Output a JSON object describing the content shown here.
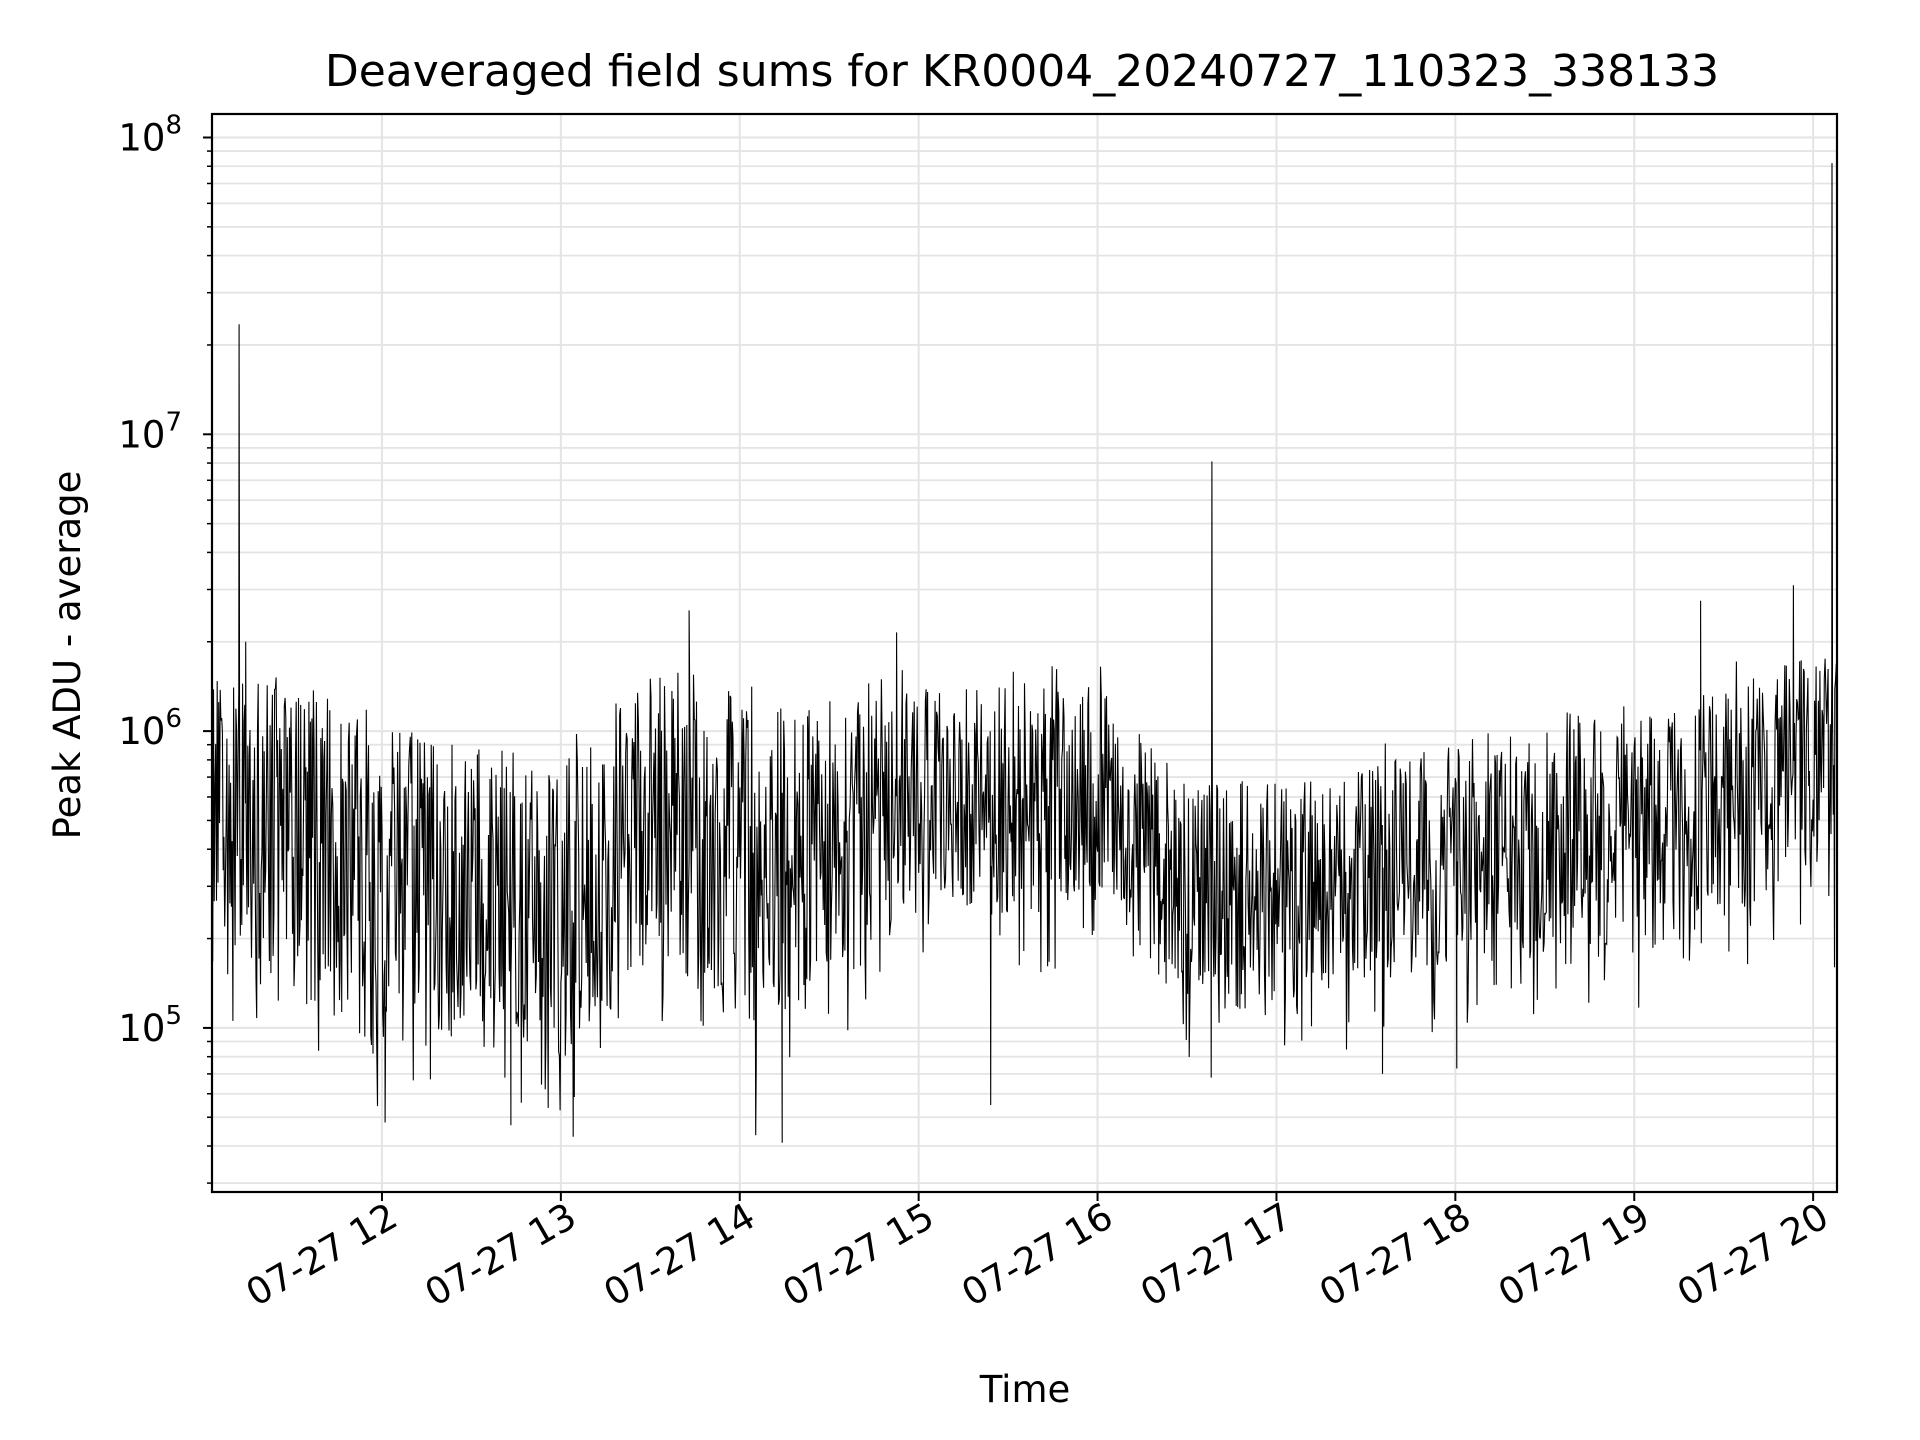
{
  "chart_data": {
    "type": "line",
    "title": "Deaveraged field sums for KR0004_20240727_110323_338133",
    "xlabel": "Time",
    "ylabel": "Peak ADU - average",
    "yscale": "log",
    "ylim": [
      28000,
      120000000
    ],
    "xlim": [
      "07-27 11:03",
      "07-27 20:08"
    ],
    "grid": true,
    "x_ticks": [
      "07-27 12",
      "07-27 13",
      "07-27 14",
      "07-27 15",
      "07-27 16",
      "07-27 17",
      "07-27 18",
      "07-27 19",
      "07-27 20"
    ],
    "y_ticks": [
      {
        "base": "10",
        "exp": "5",
        "value": 100000
      },
      {
        "base": "10",
        "exp": "6",
        "value": 1000000
      },
      {
        "base": "10",
        "exp": "7",
        "value": 10000000
      },
      {
        "base": "10",
        "exp": "8",
        "value": 100000000
      }
    ],
    "line_color": "#000000",
    "approx_samples_per_minute": 4,
    "typical_band_by_hour": [
      {
        "time": "07-27 11:03",
        "low": 180000,
        "high": 1300000
      },
      {
        "time": "07-27 11:30",
        "low": 150000,
        "high": 1200000
      },
      {
        "time": "07-27 12:00",
        "low": 90000,
        "high": 900000
      },
      {
        "time": "07-27 12:30",
        "low": 110000,
        "high": 700000
      },
      {
        "time": "07-27 13:00",
        "low": 90000,
        "high": 700000
      },
      {
        "time": "07-27 13:30",
        "low": 200000,
        "high": 1300000
      },
      {
        "time": "07-27 14:00",
        "low": 120000,
        "high": 1100000
      },
      {
        "time": "07-27 14:30",
        "low": 150000,
        "high": 1000000
      },
      {
        "time": "07-27 15:00",
        "low": 300000,
        "high": 1300000
      },
      {
        "time": "07-27 15:30",
        "low": 250000,
        "high": 1300000
      },
      {
        "time": "07-27 16:00",
        "low": 300000,
        "high": 1300000
      },
      {
        "time": "07-27 16:30",
        "low": 130000,
        "high": 600000
      },
      {
        "time": "07-27 17:00",
        "low": 130000,
        "high": 600000
      },
      {
        "time": "07-27 17:30",
        "low": 150000,
        "high": 700000
      },
      {
        "time": "07-27 18:00",
        "low": 180000,
        "high": 800000
      },
      {
        "time": "07-27 18:30",
        "low": 200000,
        "high": 900000
      },
      {
        "time": "07-27 19:00",
        "low": 200000,
        "high": 1000000
      },
      {
        "time": "07-27 19:30",
        "low": 250000,
        "high": 1300000
      },
      {
        "time": "07-27 20:00",
        "low": 400000,
        "high": 1600000
      },
      {
        "time": "07-27 20:08",
        "low": 400000,
        "high": 1600000
      }
    ],
    "notable_points": [
      {
        "time": "07-27 11:03",
        "value": 170000
      },
      {
        "time": "07-27 11:12",
        "value": 23500000
      },
      {
        "time": "07-27 11:14",
        "value": 2000000
      },
      {
        "time": "07-27 12:01",
        "value": 48000
      },
      {
        "time": "07-27 12:43",
        "value": 47000
      },
      {
        "time": "07-27 13:04",
        "value": 43000
      },
      {
        "time": "07-27 13:43",
        "value": 2550000
      },
      {
        "time": "07-27 14:05",
        "value": 43500
      },
      {
        "time": "07-27 14:14",
        "value": 41000
      },
      {
        "time": "07-27 14:52",
        "value": 2150000
      },
      {
        "time": "07-27 15:24",
        "value": 55000
      },
      {
        "time": "07-27 16:38",
        "value": 8100000
      },
      {
        "time": "07-27 16:38",
        "value": 68000
      },
      {
        "time": "07-27 17:35",
        "value": 70000
      },
      {
        "time": "07-27 18:00",
        "value": 73000
      },
      {
        "time": "07-27 19:22",
        "value": 2750000
      },
      {
        "time": "07-27 19:53",
        "value": 3100000
      },
      {
        "time": "07-27 20:06",
        "value": 82000000
      },
      {
        "time": "07-27 20:07",
        "value": 160000
      },
      {
        "time": "07-27 20:08",
        "value": 1700000
      }
    ]
  }
}
